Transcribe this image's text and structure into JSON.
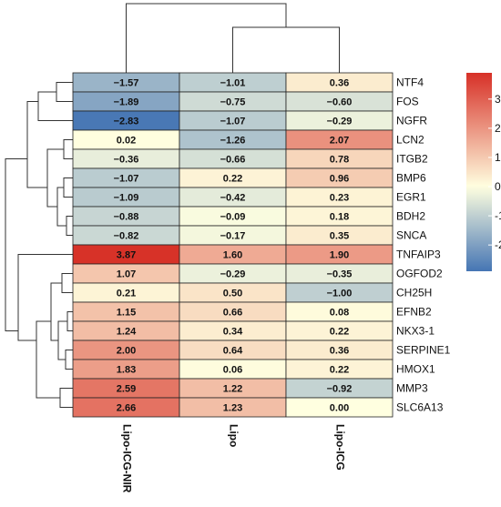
{
  "chart_data": {
    "type": "heatmap",
    "rows": [
      "NTF4",
      "FOS",
      "NGFR",
      "LCN2",
      "ITGB2",
      "BMP6",
      "EGR1",
      "BDH2",
      "SNCA",
      "TNFAIP3",
      "OGFOD2",
      "CH25H",
      "EFNB2",
      "NKX3-1",
      "SERPINE1",
      "HMOX1",
      "MMP3",
      "SLC6A13"
    ],
    "columns": [
      "Lipo-ICG-NIR",
      "Lipo",
      "Lipo-ICG"
    ],
    "values": [
      [
        -1.57,
        -1.01,
        0.36
      ],
      [
        -1.89,
        -0.75,
        -0.6
      ],
      [
        -2.83,
        -1.07,
        -0.29
      ],
      [
        0.02,
        -1.26,
        2.07
      ],
      [
        -0.36,
        -0.66,
        0.78
      ],
      [
        -1.07,
        0.22,
        0.96
      ],
      [
        -1.09,
        -0.42,
        0.23
      ],
      [
        -0.88,
        -0.09,
        0.18
      ],
      [
        -0.82,
        -0.17,
        0.35
      ],
      [
        3.87,
        1.6,
        1.9
      ],
      [
        1.07,
        -0.29,
        -0.35
      ],
      [
        0.21,
        0.5,
        -1.0
      ],
      [
        1.15,
        0.66,
        0.08
      ],
      [
        1.24,
        0.34,
        0.22
      ],
      [
        2.0,
        0.64,
        0.36
      ],
      [
        1.83,
        0.06,
        0.22
      ],
      [
        2.59,
        1.22,
        -0.92
      ],
      [
        2.66,
        1.23,
        0.0
      ]
    ],
    "value_labels": [
      [
        "−1.57",
        "−1.01",
        "0.36"
      ],
      [
        "−1.89",
        "−0.75",
        "−0.60"
      ],
      [
        "−2.83",
        "−1.07",
        "−0.29"
      ],
      [
        "0.02",
        "−1.26",
        "2.07"
      ],
      [
        "−0.36",
        "−0.66",
        "0.78"
      ],
      [
        "−1.07",
        "0.22",
        "0.96"
      ],
      [
        "−1.09",
        "−0.42",
        "0.23"
      ],
      [
        "−0.88",
        "−0.09",
        "0.18"
      ],
      [
        "−0.82",
        "−0.17",
        "0.35"
      ],
      [
        "3.87",
        "1.60",
        "1.90"
      ],
      [
        "1.07",
        "−0.29",
        "−0.35"
      ],
      [
        "0.21",
        "0.50",
        "−1.00"
      ],
      [
        "1.15",
        "0.66",
        "0.08"
      ],
      [
        "1.24",
        "0.34",
        "0.22"
      ],
      [
        "2.00",
        "0.64",
        "0.36"
      ],
      [
        "1.83",
        "0.06",
        "0.22"
      ],
      [
        "2.59",
        "1.22",
        "−0.92"
      ],
      [
        "2.66",
        "1.23",
        "0.00"
      ]
    ],
    "legend": {
      "ticks": [
        3,
        2,
        1,
        0,
        -1,
        -2
      ],
      "tick_labels": [
        "3",
        "2",
        "1",
        "0",
        "-1",
        "-2"
      ],
      "range": [
        -2.9,
        3.9
      ],
      "colors": [
        "#4575b4",
        "#ffffe0",
        "#d73027"
      ]
    },
    "dendrogram": {
      "column": "Lipo-ICG-NIR joined last with (Lipo, Lipo-ICG)",
      "row": "clustered rows shown on left"
    }
  }
}
